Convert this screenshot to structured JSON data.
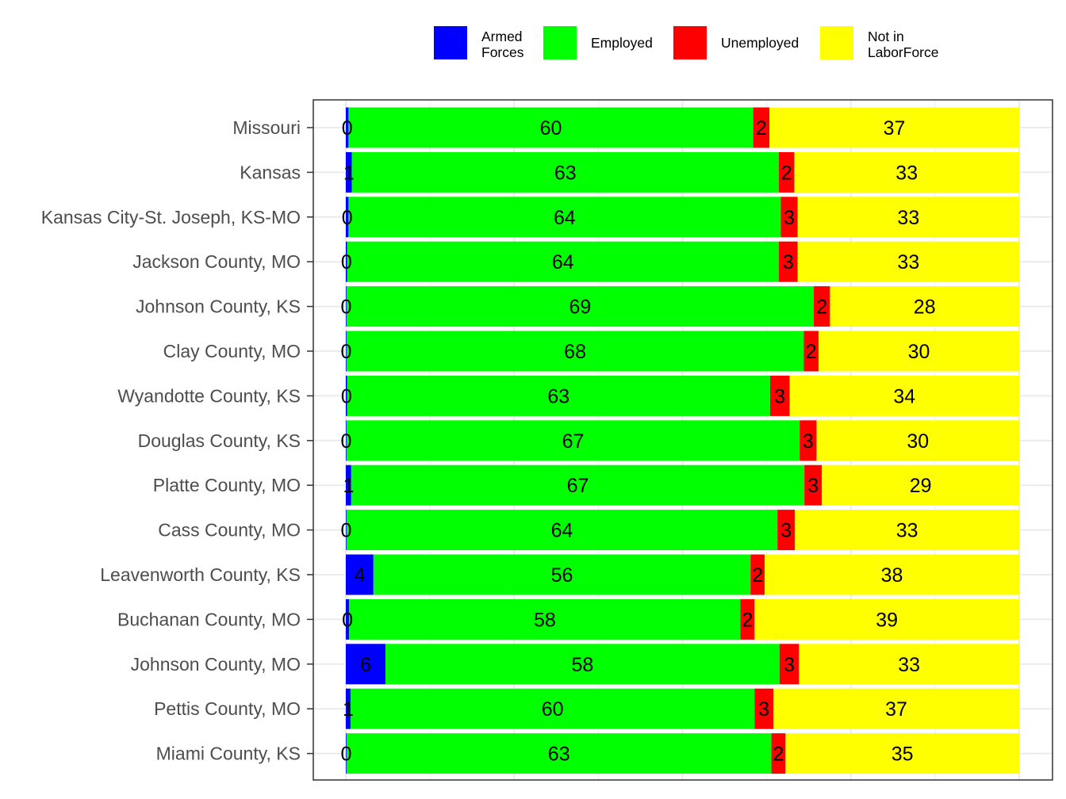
{
  "chart_data": {
    "type": "bar",
    "orientation": "horizontal",
    "stacked": true,
    "normalized_to": 100,
    "xlim": [
      0,
      100
    ],
    "grid": true,
    "legend_position": "top",
    "title": "",
    "xlabel": "",
    "ylabel": "",
    "categories": [
      "Missouri",
      "Kansas",
      "Kansas City-St. Joseph, KS-MO",
      "Jackson County, MO",
      "Johnson County, KS",
      "Clay County, MO",
      "Wyandotte County, KS",
      "Douglas County, KS",
      "Platte County, MO",
      "Cass County, MO",
      "Leavenworth County, KS",
      "Buchanan County, MO",
      "Johnson County, MO",
      "Pettis County, MO",
      "Miami County, KS"
    ],
    "series": [
      {
        "name": "Armed Forces",
        "legend_lines": [
          "Armed",
          "Forces"
        ],
        "color": "#0000ff",
        "values": [
          0.4,
          0.9,
          0.4,
          0.2,
          0.1,
          0.1,
          0.2,
          0.1,
          0.8,
          0.1,
          4.1,
          0.5,
          5.9,
          0.7,
          0.1
        ],
        "labels": [
          "0",
          "1",
          "0",
          "0",
          "0",
          "0",
          "0",
          "0",
          "1",
          "0",
          "4",
          "0",
          "6",
          "1",
          "0"
        ]
      },
      {
        "name": "Employed",
        "legend_lines": [
          "Employed"
        ],
        "color": "#00ff00",
        "values": [
          60.1,
          63.4,
          64.2,
          64.1,
          69.4,
          67.9,
          62.8,
          67.3,
          67.3,
          64.0,
          56.0,
          58.1,
          58.5,
          60.0,
          63.1
        ],
        "labels": [
          "60",
          "63",
          "64",
          "64",
          "69",
          "68",
          "63",
          "67",
          "67",
          "64",
          "56",
          "58",
          "58",
          "60",
          "63"
        ]
      },
      {
        "name": "Unemployed",
        "legend_lines": [
          "Unemployed"
        ],
        "color": "#ff0000",
        "values": [
          2.4,
          2.3,
          2.5,
          2.8,
          2.4,
          2.2,
          2.9,
          2.5,
          2.6,
          2.6,
          2.1,
          2.1,
          2.9,
          2.8,
          2.1
        ],
        "labels": [
          "2",
          "2",
          "3",
          "3",
          "2",
          "2",
          "3",
          "3",
          "3",
          "3",
          "2",
          "2",
          "3",
          "3",
          "2"
        ]
      },
      {
        "name": "Not in LaborForce",
        "legend_lines": [
          "Not in",
          "LaborForce"
        ],
        "color": "#ffff00",
        "values": [
          37.1,
          33.4,
          32.9,
          32.9,
          28.1,
          29.8,
          34.1,
          30.1,
          29.3,
          33.3,
          37.8,
          39.3,
          32.7,
          36.5,
          34.7
        ],
        "labels": [
          "37",
          "33",
          "33",
          "33",
          "28",
          "30",
          "34",
          "30",
          "29",
          "33",
          "38",
          "39",
          "33",
          "37",
          "35"
        ]
      }
    ]
  }
}
